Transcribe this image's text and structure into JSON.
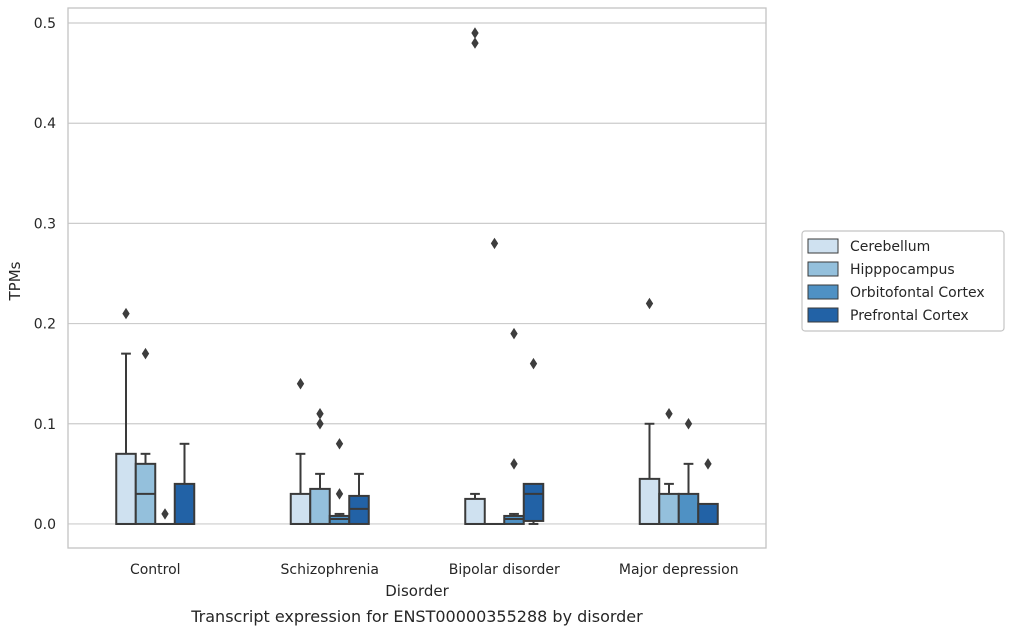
{
  "caption": "Transcript expression for ENST00000355288 by disorder",
  "colors": {
    "Cerebellum": "#cfe1f0",
    "Hipppocampus": "#94c0dc",
    "Orbitofontal Cortex": "#4f91c4",
    "Prefrontal Cortex": "#2262a6",
    "edge": "#3a3a3a",
    "grid": "#cccccc",
    "axes": "#c4c4c4"
  },
  "chart_data": {
    "type": "box",
    "title": "",
    "xlabel": "Disorder",
    "ylabel": "TPMs",
    "ylim": [
      -0.024,
      0.515
    ],
    "yticks": [
      0.0,
      0.1,
      0.2,
      0.3,
      0.4,
      0.5
    ],
    "ytick_labels": [
      "0.0",
      "0.1",
      "0.2",
      "0.3",
      "0.4",
      "0.5"
    ],
    "grid": "horizontal",
    "legend_position": "right",
    "categories": [
      "Control",
      "Schizophrenia",
      "Bipolar disorder",
      "Major depression"
    ],
    "series": [
      {
        "name": "Cerebellum",
        "boxes": [
          {
            "q1": 0.0,
            "median": 0.0,
            "q3": 0.07,
            "whisker_low": 0.0,
            "whisker_high": 0.17,
            "outliers": [
              0.21
            ]
          },
          {
            "q1": 0.0,
            "median": 0.0,
            "q3": 0.03,
            "whisker_low": 0.0,
            "whisker_high": 0.07,
            "outliers": [
              0.14
            ]
          },
          {
            "q1": 0.0,
            "median": 0.0,
            "q3": 0.025,
            "whisker_low": 0.0,
            "whisker_high": 0.03,
            "outliers": [
              0.48,
              0.49
            ]
          },
          {
            "q1": 0.0,
            "median": 0.0,
            "q3": 0.045,
            "whisker_low": 0.0,
            "whisker_high": 0.1,
            "outliers": [
              0.22
            ]
          }
        ]
      },
      {
        "name": "Hipppocampus",
        "boxes": [
          {
            "q1": 0.0,
            "median": 0.03,
            "q3": 0.06,
            "whisker_low": 0.0,
            "whisker_high": 0.07,
            "outliers": [
              0.17
            ]
          },
          {
            "q1": 0.0,
            "median": 0.0,
            "q3": 0.035,
            "whisker_low": 0.0,
            "whisker_high": 0.05,
            "outliers": [
              0.1,
              0.11
            ]
          },
          {
            "q1": 0.0,
            "median": 0.0,
            "q3": 0.0,
            "whisker_low": 0.0,
            "whisker_high": 0.0,
            "outliers": [
              0.28
            ]
          },
          {
            "q1": 0.0,
            "median": 0.0,
            "q3": 0.03,
            "whisker_low": 0.0,
            "whisker_high": 0.04,
            "outliers": [
              0.11
            ]
          }
        ]
      },
      {
        "name": "Orbitofontal Cortex",
        "boxes": [
          {
            "q1": 0.0,
            "median": 0.0,
            "q3": 0.0,
            "whisker_low": 0.0,
            "whisker_high": 0.0,
            "outliers": [
              0.01
            ]
          },
          {
            "q1": 0.0,
            "median": 0.005,
            "q3": 0.008,
            "whisker_low": 0.0,
            "whisker_high": 0.01,
            "outliers": [
              0.03,
              0.08
            ]
          },
          {
            "q1": 0.0,
            "median": 0.005,
            "q3": 0.008,
            "whisker_low": 0.0,
            "whisker_high": 0.01,
            "outliers": [
              0.06,
              0.19
            ]
          },
          {
            "q1": 0.0,
            "median": 0.0,
            "q3": 0.03,
            "whisker_low": 0.0,
            "whisker_high": 0.06,
            "outliers": [
              0.1
            ]
          }
        ]
      },
      {
        "name": "Prefrontal Cortex",
        "boxes": [
          {
            "q1": 0.0,
            "median": 0.0,
            "q3": 0.04,
            "whisker_low": 0.0,
            "whisker_high": 0.08,
            "outliers": []
          },
          {
            "q1": 0.0,
            "median": 0.015,
            "q3": 0.028,
            "whisker_low": 0.0,
            "whisker_high": 0.05,
            "outliers": []
          },
          {
            "q1": 0.003,
            "median": 0.03,
            "q3": 0.04,
            "whisker_low": 0.0,
            "whisker_high": 0.04,
            "outliers": [
              0.16
            ]
          },
          {
            "q1": 0.0,
            "median": 0.0,
            "q3": 0.02,
            "whisker_low": 0.0,
            "whisker_high": 0.02,
            "outliers": [
              0.06
            ]
          }
        ]
      }
    ]
  }
}
